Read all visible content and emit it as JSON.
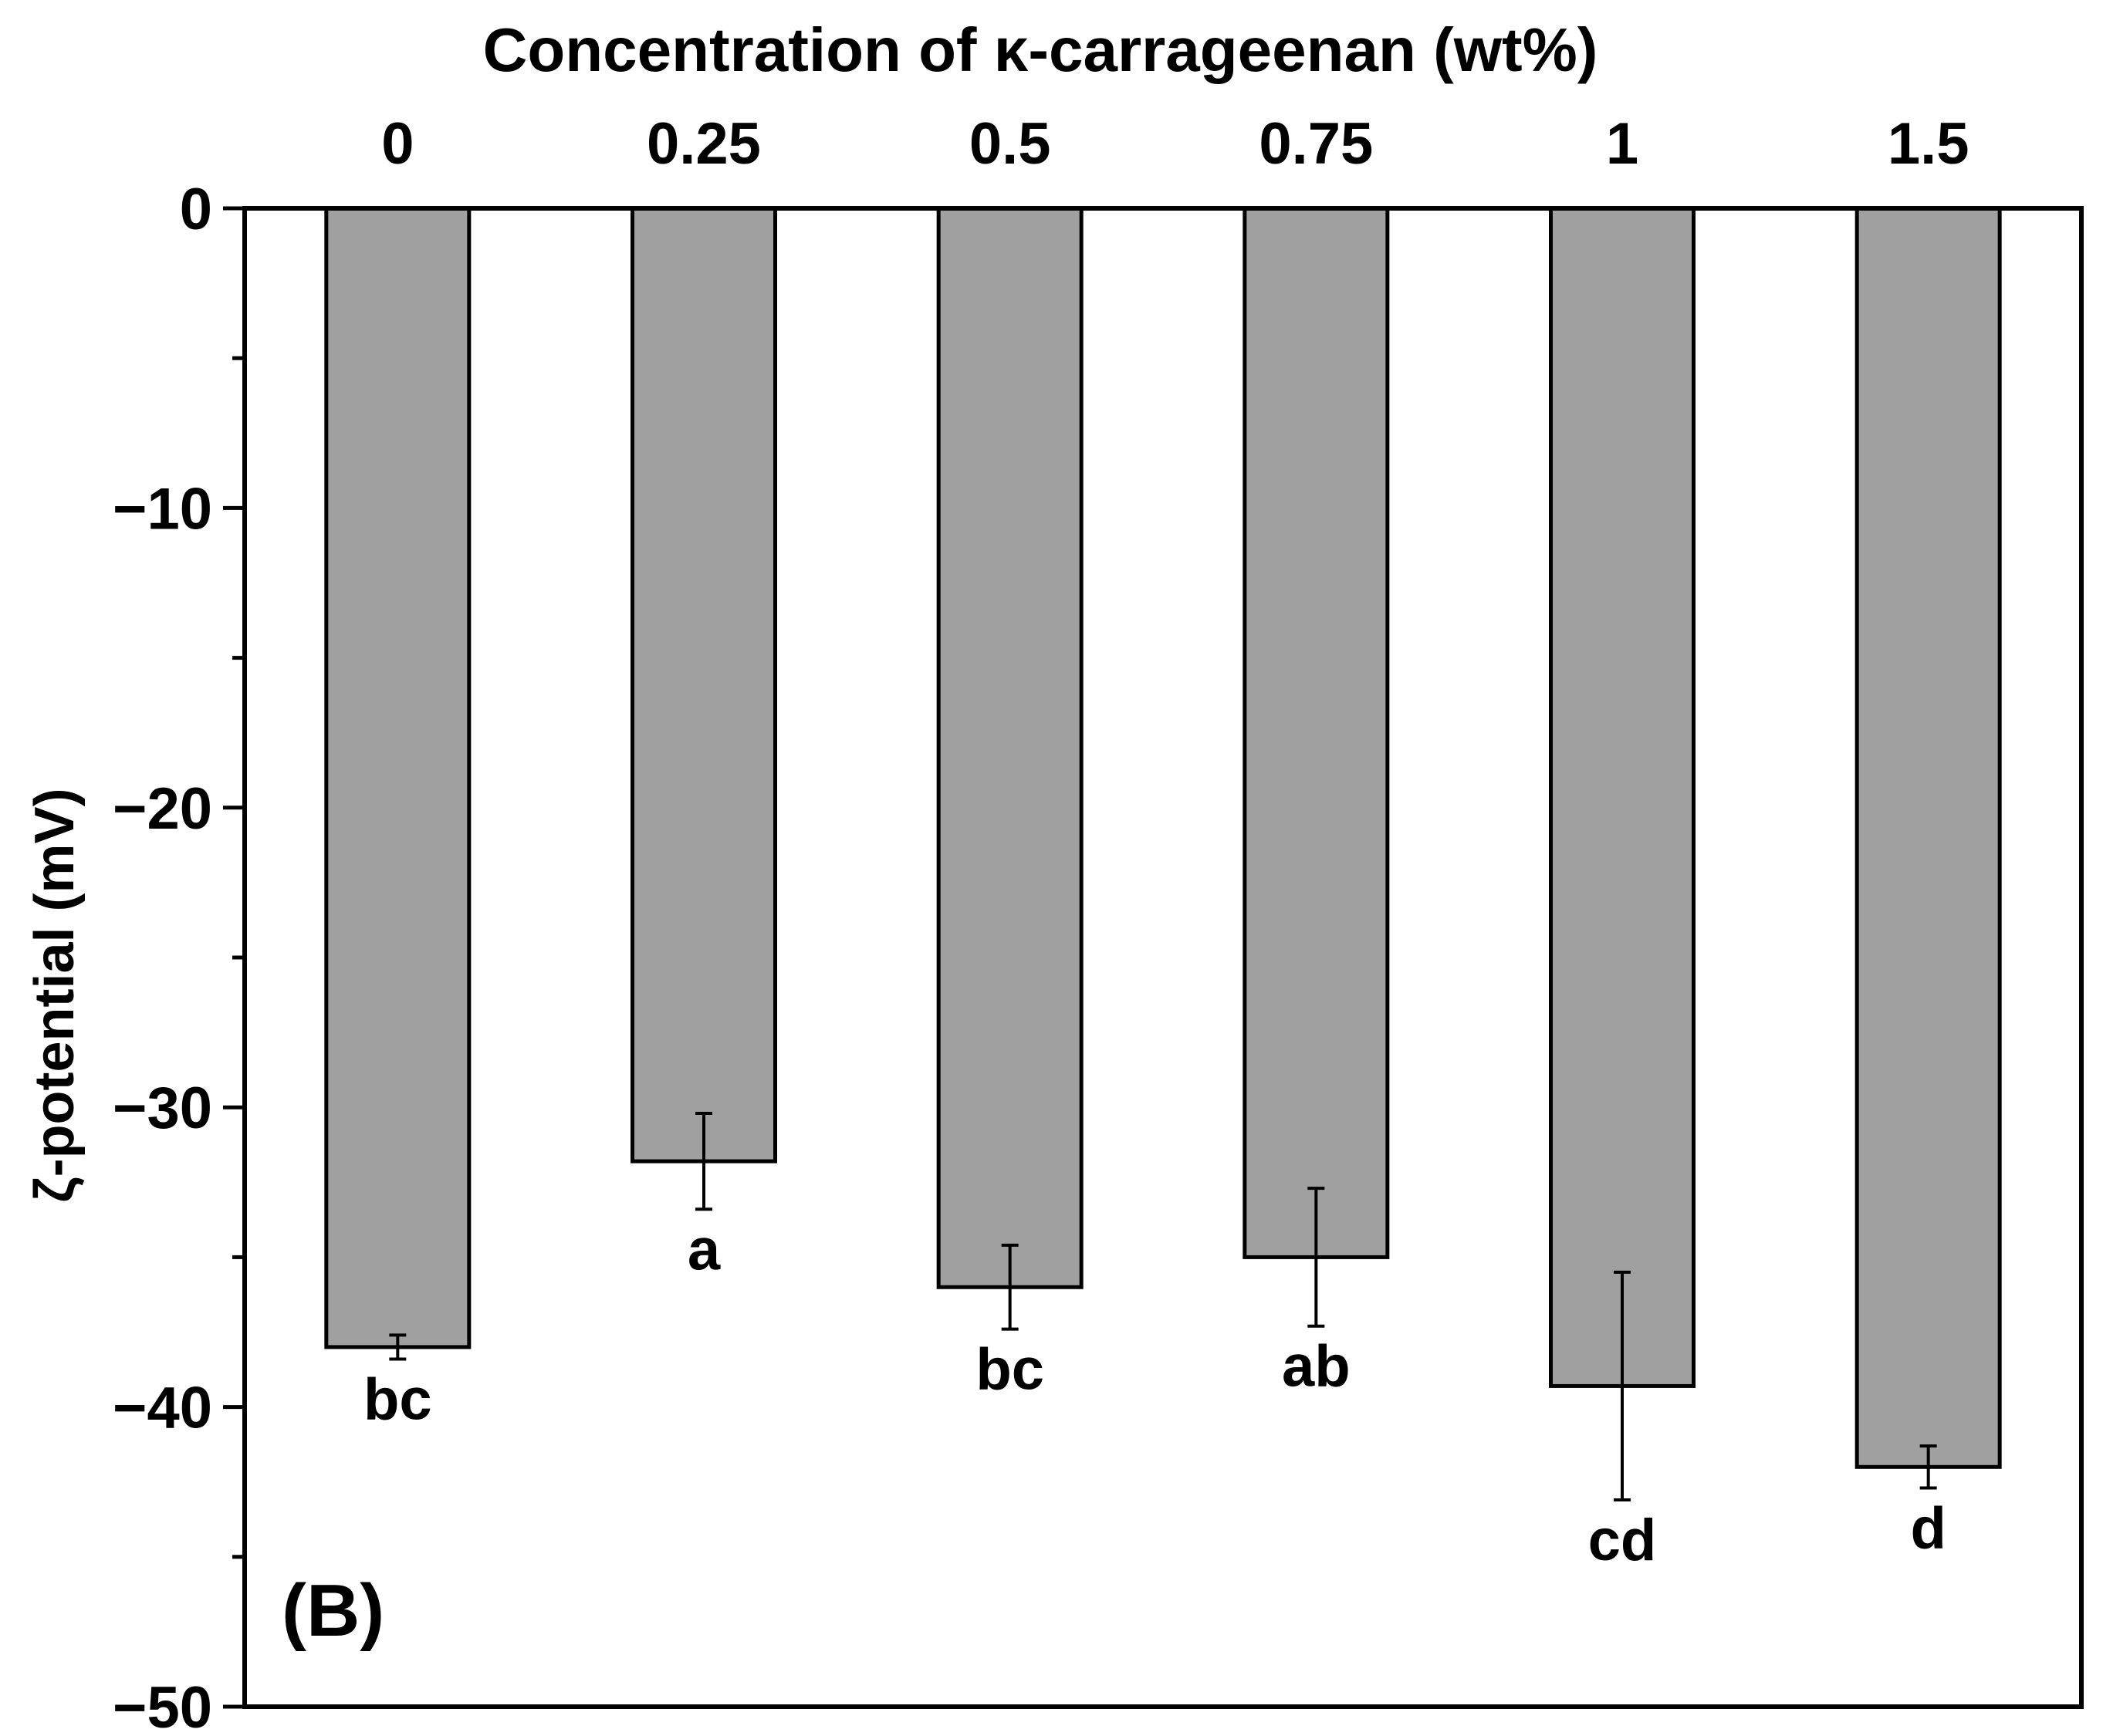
{
  "chart_data": {
    "type": "bar",
    "title": "",
    "xlabel": "Concentration of κ-carrageenan (wt%)",
    "ylabel": "ζ-potential (mV)",
    "categories": [
      "0",
      "0.25",
      "0.5",
      "0.75",
      "1",
      "1.5"
    ],
    "values": [
      -38.0,
      -31.8,
      -36.0,
      -35.0,
      -39.3,
      -42.0
    ],
    "errors": [
      0.4,
      1.6,
      1.4,
      2.3,
      3.8,
      0.7
    ],
    "significance": [
      "bc",
      "a",
      "bc",
      "ab",
      "cd",
      "d"
    ],
    "ylim": [
      -50,
      0
    ],
    "yticks": [
      0,
      -10,
      -20,
      -30,
      -40,
      -50
    ],
    "ytick_labels": [
      "0",
      "−10",
      "−20",
      "−30",
      "−40",
      "−50"
    ],
    "minor_yticks": [
      -5,
      -15,
      -25,
      -35,
      -45
    ],
    "x_axis_position": "top",
    "panel_label": "(B)",
    "bar_color": "#a0a0a0",
    "edge_color": "#000000"
  }
}
